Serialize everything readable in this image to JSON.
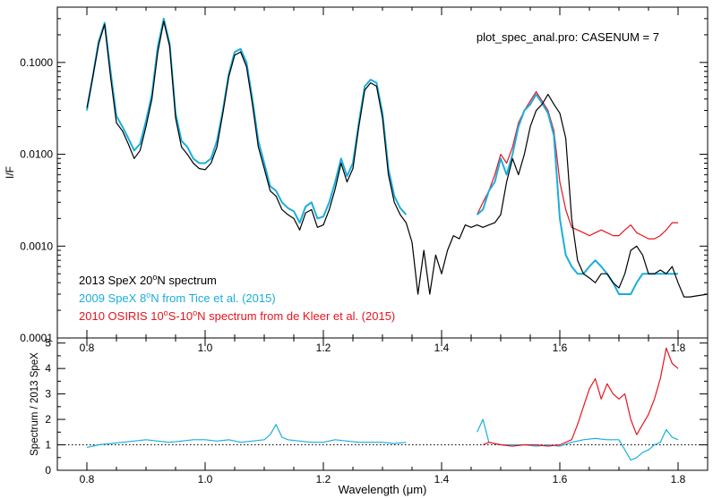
{
  "chart_data": [
    {
      "type": "line",
      "title": "plot_spec_anal.pro: CASENUM =  7",
      "xlabel": "",
      "ylabel": "I/F",
      "y_scale": "log",
      "xlim": [
        0.75,
        1.85
      ],
      "ylim": [
        0.0001,
        0.4
      ],
      "y_ticks": [
        0.0001,
        0.001,
        0.01,
        0.1
      ],
      "y_tick_labels": [
        "0.0001",
        "0.0010",
        "0.0100",
        "0.1000"
      ],
      "legend_position": "bottom-left",
      "series": [
        {
          "name": "2013 SpeX 20°N spectrum",
          "legend": {
            "before": "2013 SpeX 20",
            "sup": "o",
            "after": "N spectrum"
          },
          "color": "#000000",
          "x": [
            0.8,
            0.81,
            0.82,
            0.83,
            0.84,
            0.85,
            0.86,
            0.87,
            0.88,
            0.89,
            0.9,
            0.91,
            0.92,
            0.93,
            0.94,
            0.95,
            0.96,
            0.97,
            0.98,
            0.99,
            1.0,
            1.01,
            1.02,
            1.03,
            1.04,
            1.05,
            1.06,
            1.07,
            1.08,
            1.09,
            1.1,
            1.11,
            1.12,
            1.13,
            1.14,
            1.15,
            1.16,
            1.17,
            1.18,
            1.19,
            1.2,
            1.21,
            1.22,
            1.23,
            1.24,
            1.25,
            1.26,
            1.27,
            1.28,
            1.29,
            1.3,
            1.31,
            1.32,
            1.33,
            1.34,
            1.35,
            1.36,
            1.37,
            1.38,
            1.39,
            1.4,
            1.41,
            1.42,
            1.43,
            1.44,
            1.45,
            1.46,
            1.47,
            1.48,
            1.49,
            1.5,
            1.51,
            1.52,
            1.53,
            1.54,
            1.55,
            1.56,
            1.57,
            1.58,
            1.59,
            1.6,
            1.61,
            1.62,
            1.63,
            1.64,
            1.65,
            1.66,
            1.67,
            1.68,
            1.69,
            1.7,
            1.71,
            1.72,
            1.73,
            1.74,
            1.75,
            1.76,
            1.77,
            1.78,
            1.79,
            1.8,
            1.81,
            1.82,
            1.85
          ],
          "y": [
            0.032,
            0.07,
            0.16,
            0.26,
            0.07,
            0.022,
            0.018,
            0.013,
            0.009,
            0.011,
            0.02,
            0.04,
            0.13,
            0.28,
            0.15,
            0.025,
            0.012,
            0.01,
            0.008,
            0.007,
            0.0068,
            0.008,
            0.012,
            0.028,
            0.07,
            0.12,
            0.13,
            0.09,
            0.035,
            0.012,
            0.007,
            0.004,
            0.0035,
            0.0025,
            0.0022,
            0.002,
            0.0015,
            0.0023,
            0.0025,
            0.0016,
            0.0017,
            0.0025,
            0.0042,
            0.008,
            0.005,
            0.007,
            0.02,
            0.05,
            0.06,
            0.055,
            0.025,
            0.006,
            0.003,
            0.0022,
            0.0018,
            0.0011,
            0.0003,
            0.0009,
            0.0003,
            0.0008,
            0.0005,
            0.0009,
            0.0013,
            0.0012,
            0.0017,
            0.0016,
            0.0017,
            0.0016,
            0.0017,
            0.0018,
            0.0022,
            0.005,
            0.009,
            0.006,
            0.01,
            0.02,
            0.03,
            0.035,
            0.045,
            0.035,
            0.028,
            0.015,
            0.002,
            0.0007,
            0.0005,
            0.00045,
            0.0004,
            0.0005,
            0.0005,
            0.0004,
            0.00035,
            0.0005,
            0.0009,
            0.001,
            0.0008,
            0.0005,
            0.0005,
            0.00055,
            0.0005,
            0.0006,
            0.0004,
            0.00028,
            0.00028,
            0.0003
          ]
        },
        {
          "name": "2009 SpeX 8°N from Tice et al. (2015)",
          "legend": {
            "before": "2009 SpeX 8",
            "sup": "o",
            "after": "N from Tice et al. (2015)"
          },
          "color": "#1aaedc",
          "x": [
            0.8,
            0.81,
            0.82,
            0.83,
            0.84,
            0.85,
            0.86,
            0.87,
            0.88,
            0.89,
            0.9,
            0.91,
            0.92,
            0.93,
            0.94,
            0.95,
            0.96,
            0.97,
            0.98,
            0.99,
            1.0,
            1.01,
            1.02,
            1.03,
            1.04,
            1.05,
            1.06,
            1.07,
            1.08,
            1.09,
            1.1,
            1.11,
            1.12,
            1.13,
            1.14,
            1.15,
            1.16,
            1.17,
            1.18,
            1.19,
            1.2,
            1.21,
            1.22,
            1.23,
            1.24,
            1.25,
            1.26,
            1.27,
            1.28,
            1.29,
            1.3,
            1.31,
            1.32,
            1.33,
            1.34,
            null,
            1.46,
            1.47,
            1.48,
            1.49,
            1.5,
            1.51,
            1.52,
            1.53,
            1.54,
            1.55,
            1.56,
            1.57,
            1.58,
            1.59,
            1.6,
            1.61,
            1.62,
            1.63,
            1.64,
            1.65,
            1.66,
            1.67,
            1.68,
            1.69,
            1.7,
            1.71,
            1.72,
            1.73,
            1.74,
            1.75,
            1.76,
            1.77,
            1.78,
            1.79,
            1.8
          ],
          "y": [
            0.03,
            0.07,
            0.17,
            0.27,
            0.08,
            0.026,
            0.02,
            0.015,
            0.011,
            0.013,
            0.023,
            0.045,
            0.15,
            0.3,
            0.16,
            0.028,
            0.014,
            0.012,
            0.009,
            0.008,
            0.008,
            0.009,
            0.014,
            0.03,
            0.075,
            0.13,
            0.14,
            0.1,
            0.04,
            0.014,
            0.008,
            0.0045,
            0.004,
            0.003,
            0.0026,
            0.0024,
            0.0018,
            0.0027,
            0.003,
            0.002,
            0.0021,
            0.003,
            0.005,
            0.009,
            0.0058,
            0.008,
            0.022,
            0.055,
            0.065,
            0.06,
            0.028,
            0.007,
            0.0035,
            0.0026,
            0.0022,
            null,
            0.0022,
            0.0025,
            0.004,
            0.005,
            0.009,
            0.006,
            0.01,
            0.02,
            0.03,
            0.035,
            0.045,
            0.036,
            0.028,
            0.016,
            0.002,
            0.0008,
            0.0006,
            0.0005,
            0.0005,
            0.0006,
            0.0007,
            0.0006,
            0.0005,
            0.0004,
            0.0003,
            0.0003,
            0.0003,
            0.0004,
            0.0005,
            0.0005,
            0.0005,
            0.0005,
            0.0005,
            0.0005,
            0.0005
          ]
        },
        {
          "name": "2010 OSIRIS 10°S-10°N spectrum from de Kleer et al. (2015)",
          "legend": {
            "before": "2010 OSIRIS 10",
            "sup": "o",
            "mid": "S-10",
            "sup2": "o",
            "after": "N spectrum from de Kleer et al. (2015)"
          },
          "color": "#e8141e",
          "x": [
            1.46,
            1.47,
            1.48,
            1.49,
            1.5,
            1.51,
            1.52,
            1.53,
            1.54,
            1.55,
            1.56,
            1.57,
            1.58,
            1.59,
            1.6,
            1.61,
            1.62,
            1.63,
            1.64,
            1.65,
            1.66,
            1.67,
            1.68,
            1.69,
            1.7,
            1.71,
            1.72,
            1.73,
            1.74,
            1.75,
            1.76,
            1.77,
            1.78,
            1.79,
            1.8
          ],
          "y": [
            0.0022,
            0.003,
            0.004,
            0.006,
            0.01,
            0.008,
            0.012,
            0.022,
            0.03,
            0.038,
            0.048,
            0.038,
            0.03,
            0.018,
            0.005,
            0.0025,
            0.0016,
            0.0015,
            0.0014,
            0.0013,
            0.0014,
            0.0015,
            0.0014,
            0.0013,
            0.0013,
            0.0015,
            0.0017,
            0.0014,
            0.0013,
            0.0012,
            0.0012,
            0.0013,
            0.0015,
            0.0018,
            0.0018
          ]
        }
      ]
    },
    {
      "type": "line",
      "xlabel": "Wavelength (μm)",
      "ylabel": "Spectrum / 2013 SpeX",
      "xlim": [
        0.75,
        1.85
      ],
      "ylim": [
        0,
        5.2
      ],
      "x_ticks": [
        0.8,
        1.0,
        1.2,
        1.4,
        1.6,
        1.8
      ],
      "x_tick_labels": [
        "0.8",
        "1.0",
        "1.2",
        "1.4",
        "1.6",
        "1.8"
      ],
      "y_ticks": [
        0,
        1,
        2,
        3,
        4,
        5
      ],
      "y_tick_labels": [
        "0",
        "1",
        "2",
        "3",
        "4",
        "5"
      ],
      "reference_line": {
        "y": 1,
        "style": "dotted"
      },
      "series": [
        {
          "color": "#1aaedc",
          "x": [
            0.8,
            0.82,
            0.84,
            0.86,
            0.88,
            0.9,
            0.92,
            0.94,
            0.96,
            0.98,
            1.0,
            1.02,
            1.04,
            1.06,
            1.08,
            1.1,
            1.11,
            1.12,
            1.13,
            1.14,
            1.16,
            1.18,
            1.2,
            1.22,
            1.24,
            1.26,
            1.28,
            1.3,
            1.32,
            1.34,
            null,
            1.46,
            1.47,
            1.48,
            1.5,
            1.52,
            1.54,
            1.56,
            1.58,
            1.6,
            1.62,
            1.64,
            1.66,
            1.68,
            1.7,
            1.71,
            1.72,
            1.73,
            1.74,
            1.75,
            1.76,
            1.77,
            1.78,
            1.79,
            1.8
          ],
          "y": [
            0.9,
            1.0,
            1.05,
            1.1,
            1.15,
            1.2,
            1.15,
            1.1,
            1.15,
            1.2,
            1.2,
            1.15,
            1.2,
            1.1,
            1.15,
            1.2,
            1.4,
            1.8,
            1.3,
            1.2,
            1.15,
            1.1,
            1.1,
            1.2,
            1.15,
            1.1,
            1.1,
            1.1,
            1.05,
            1.1,
            null,
            1.5,
            2.0,
            1.1,
            1.0,
            1.0,
            1.0,
            0.95,
            1.0,
            0.95,
            1.1,
            1.2,
            1.25,
            1.2,
            1.2,
            0.8,
            0.4,
            0.5,
            0.7,
            0.8,
            1.0,
            1.1,
            1.6,
            1.3,
            1.2
          ]
        },
        {
          "color": "#e8141e",
          "x": [
            1.47,
            1.48,
            1.5,
            1.52,
            1.54,
            1.56,
            1.58,
            1.6,
            1.62,
            1.63,
            1.64,
            1.65,
            1.66,
            1.67,
            1.68,
            1.69,
            1.7,
            1.71,
            1.72,
            1.73,
            1.74,
            1.75,
            1.76,
            1.77,
            1.78,
            1.79,
            1.8
          ],
          "y": [
            1.0,
            1.1,
            1.0,
            0.95,
            1.0,
            1.0,
            0.95,
            1.0,
            1.2,
            1.8,
            2.5,
            3.2,
            3.6,
            2.8,
            3.4,
            3.0,
            2.8,
            3.0,
            2.0,
            1.4,
            1.8,
            2.2,
            2.8,
            3.6,
            4.8,
            4.2,
            4.0
          ]
        }
      ]
    }
  ]
}
